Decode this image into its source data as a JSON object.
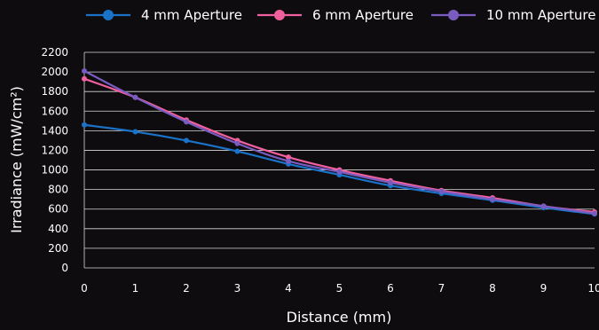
{
  "chart_data": {
    "type": "line",
    "xlabel": "Distance (mm)",
    "ylabel": "Irradiance (mW/cm²)",
    "x": [
      0,
      1,
      2,
      3,
      4,
      5,
      6,
      7,
      8,
      9,
      10
    ],
    "xlim": [
      0,
      10
    ],
    "ylim": [
      0,
      2200
    ],
    "y_ticks": [
      0,
      200,
      400,
      600,
      800,
      1000,
      1200,
      1400,
      1600,
      1800,
      2000,
      2200
    ],
    "x_ticks": [
      "0",
      "1",
      "2",
      "3",
      "4",
      "5",
      "6",
      "7",
      "8",
      "9",
      "10"
    ],
    "grid": true,
    "legend_position": "top",
    "series": [
      {
        "name": "4 mm Aperture",
        "color": "#1a73c8",
        "values": [
          1460,
          1390,
          1300,
          1190,
          1060,
          950,
          840,
          760,
          690,
          615,
          550
        ]
      },
      {
        "name": "6 mm Aperture",
        "color": "#f0609e",
        "values": [
          1930,
          1740,
          1510,
          1300,
          1130,
          1000,
          890,
          790,
          715,
          630,
          570
        ]
      },
      {
        "name": "10 mm Aperture",
        "color": "#7a5cc0",
        "values": [
          2010,
          1740,
          1490,
          1270,
          1090,
          980,
          870,
          780,
          700,
          630,
          555
        ]
      }
    ]
  }
}
